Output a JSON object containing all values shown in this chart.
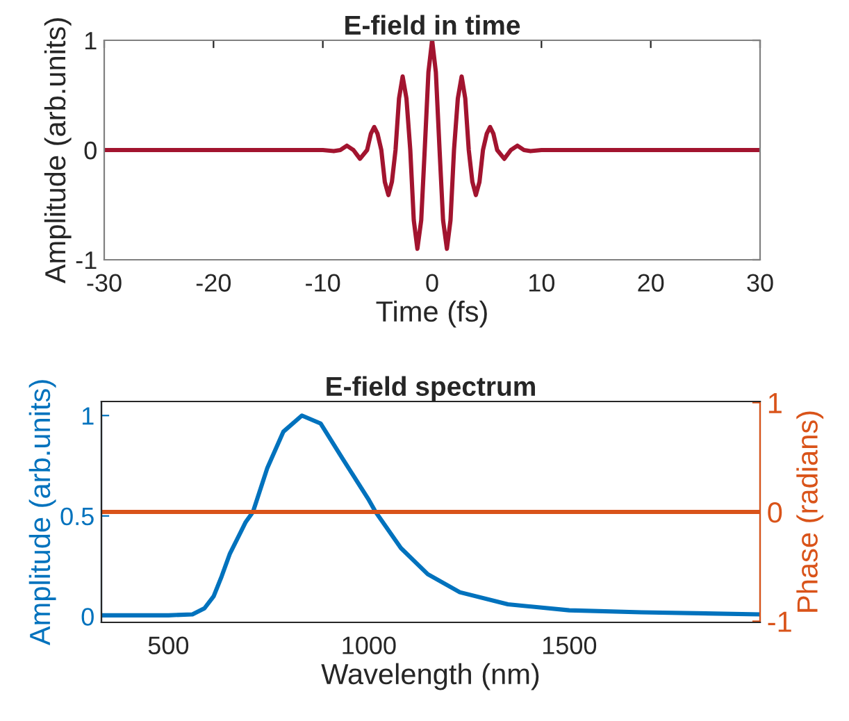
{
  "chart_data": [
    {
      "type": "line",
      "title": "E-field in time",
      "xlabel": "Time (fs)",
      "ylabel": "Amplitude (arb.units)",
      "xlim": [
        -30,
        30
      ],
      "ylim": [
        -1,
        1
      ],
      "xticks": [
        -30,
        -20,
        -10,
        0,
        10,
        20,
        30
      ],
      "yticks": [
        -1,
        0,
        1
      ],
      "grid": false,
      "series": [
        {
          "color": "#a2142f",
          "x": [
            -30,
            -10,
            -9,
            -8.4,
            -7.8,
            -7.2,
            -6.6,
            -5.95,
            -5.6,
            -5.3,
            -5.0,
            -4.65,
            -4.33,
            -4.0,
            -3.68,
            -3.35,
            -3.03,
            -2.7,
            -2.35,
            -2.0,
            -1.68,
            -1.35,
            -1.0,
            -0.68,
            -0.34,
            0,
            0.34,
            0.68,
            1.0,
            1.35,
            1.68,
            2.0,
            2.35,
            2.7,
            3.03,
            3.35,
            3.68,
            4.0,
            4.33,
            4.65,
            5.0,
            5.3,
            5.6,
            5.95,
            6.6,
            7.2,
            7.8,
            8.4,
            9,
            10,
            30
          ],
          "values": [
            0,
            0,
            -0.01,
            0,
            0.04,
            0,
            -0.08,
            0,
            0.15,
            0.21,
            0.15,
            0,
            -0.29,
            -0.41,
            -0.29,
            0,
            0.47,
            0.67,
            0.47,
            0,
            -0.64,
            -0.9,
            -0.64,
            0,
            0.71,
            1,
            0.71,
            0,
            -0.64,
            -0.9,
            -0.64,
            0,
            0.47,
            0.67,
            0.47,
            0,
            -0.29,
            -0.41,
            -0.29,
            0,
            0.15,
            0.21,
            0.15,
            0,
            -0.08,
            0,
            0.04,
            0,
            -0.01,
            0,
            0
          ]
        }
      ]
    },
    {
      "type": "line",
      "title": "E-field spectrum",
      "xlabel": "Wavelength (nm)",
      "ylabel": "Amplitude (arb.units)",
      "y2label": "Phase (radians)",
      "xlim": [
        333,
        1976
      ],
      "ylim": [
        -0.03,
        1.07
      ],
      "y2lim": [
        -1.01,
        1.01
      ],
      "xticks": [
        500,
        1000,
        1500
      ],
      "yticks": [
        0,
        0.5,
        1
      ],
      "y2ticks": [
        -1,
        0,
        1
      ],
      "grid": false,
      "series": [
        {
          "color": "#0072bd",
          "x": [
            333,
            500,
            560,
            590,
            613,
            633,
            653,
            693,
            711,
            747,
            787,
            833,
            880,
            933,
            1000,
            1017,
            1080,
            1147,
            1227,
            1347,
            1500,
            1680,
            1976
          ],
          "values": [
            0.005,
            0.005,
            0.01,
            0.04,
            0.1,
            0.2,
            0.31,
            0.47,
            0.52,
            0.74,
            0.92,
            1.0,
            0.96,
            0.79,
            0.58,
            0.52,
            0.34,
            0.21,
            0.12,
            0.06,
            0.03,
            0.02,
            0.01
          ]
        },
        {
          "color": "#d95319",
          "axis": "y2",
          "x": [
            333,
            1976
          ],
          "values": [
            0,
            0
          ]
        }
      ]
    }
  ]
}
